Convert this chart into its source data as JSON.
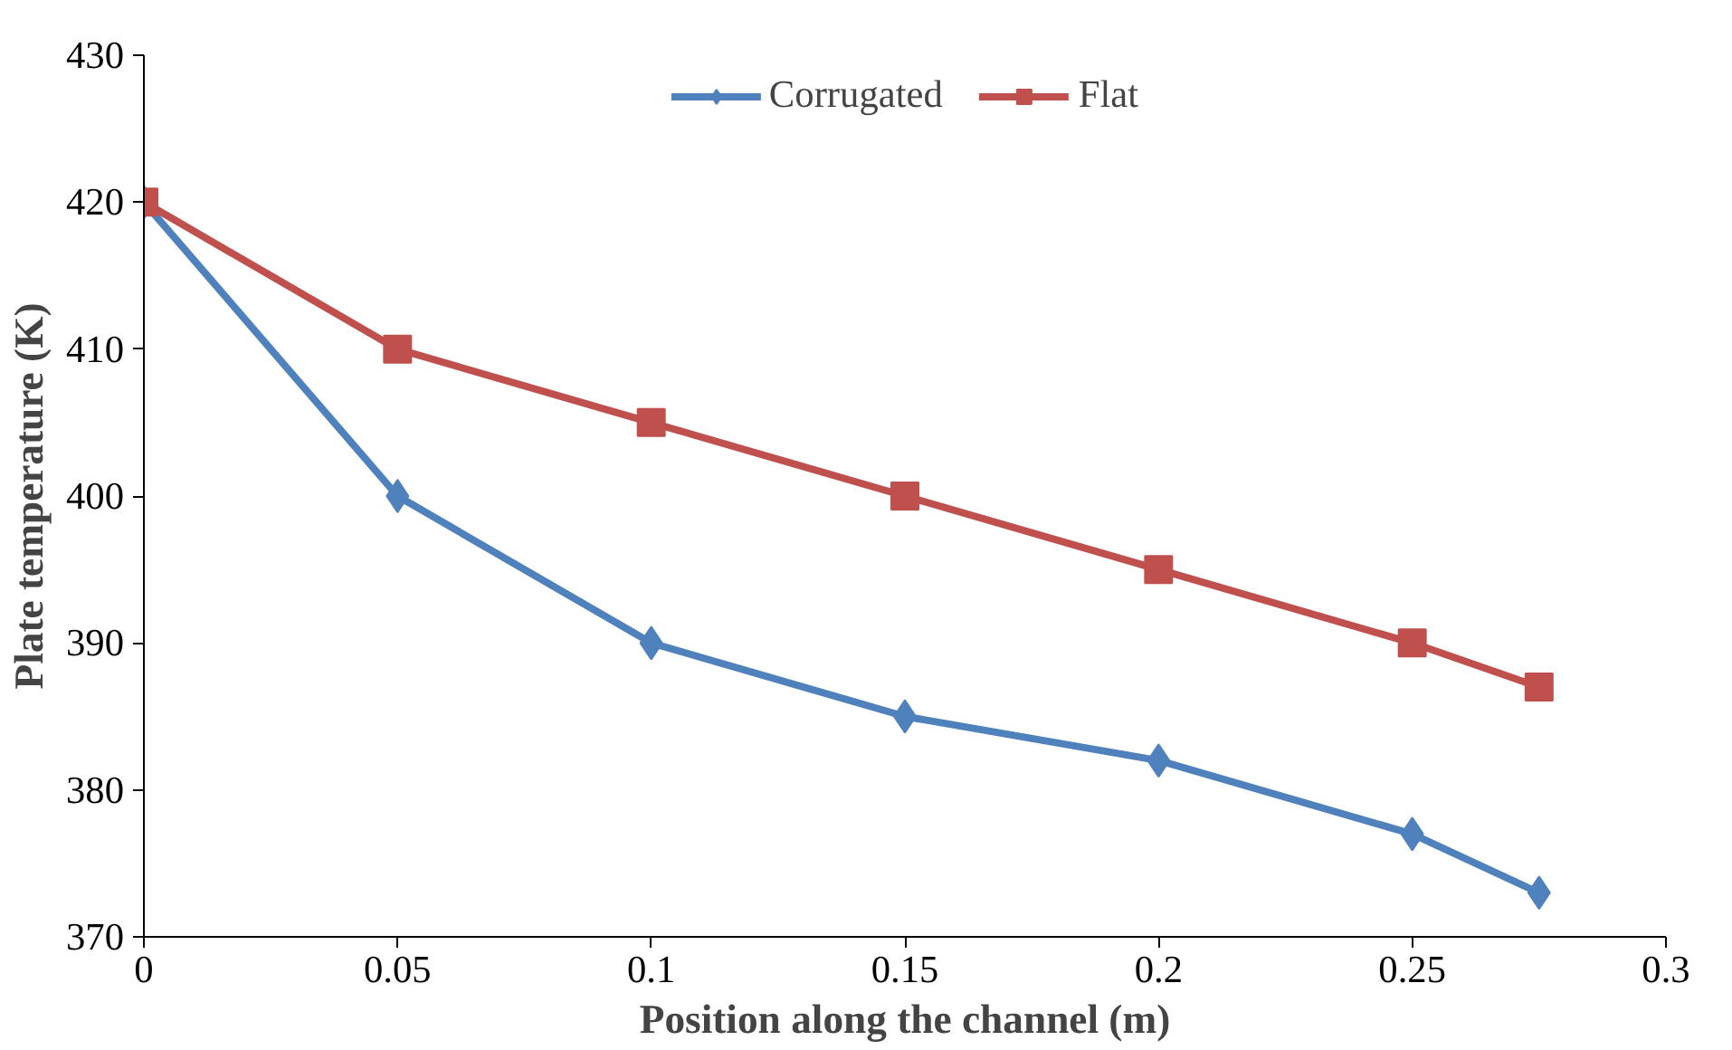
{
  "chart_data": {
    "type": "line",
    "xlabel": "Position along the channel (m)",
    "ylabel": "Plate temperature (K)",
    "xlim": [
      0,
      0.3
    ],
    "xticks": [
      0,
      0.05,
      0.1,
      0.15,
      0.2,
      0.25,
      0.3
    ],
    "ylim": [
      370,
      430
    ],
    "yticks": [
      370,
      380,
      390,
      400,
      410,
      420,
      430
    ],
    "grid": false,
    "legend": "top",
    "line_style": "solid",
    "x": [
      0,
      0.05,
      0.1,
      0.15,
      0.2,
      0.25,
      0.275
    ],
    "series": [
      {
        "name": "Corrugated",
        "color": "#4f81bd",
        "marker": "diamond",
        "values": [
          420,
          400,
          390,
          385,
          382,
          377,
          373
        ]
      },
      {
        "name": "Flat",
        "color": "#c0504d",
        "marker": "square",
        "values": [
          420,
          410,
          405,
          400,
          395,
          390,
          387
        ]
      }
    ]
  }
}
